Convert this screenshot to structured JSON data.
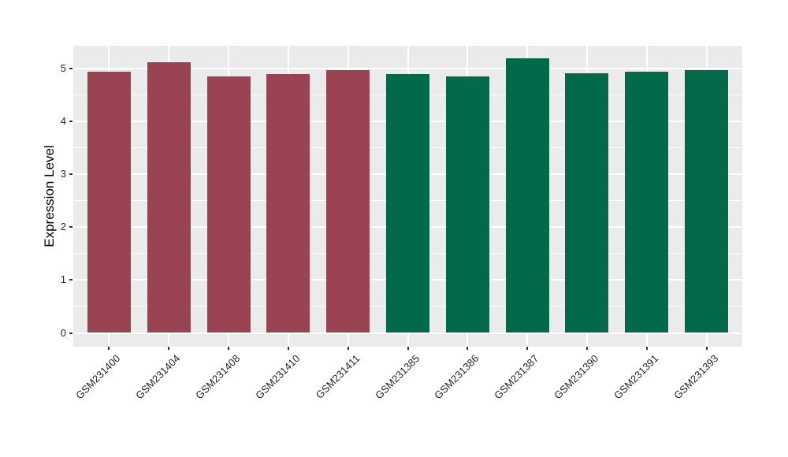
{
  "chart_data": {
    "type": "bar",
    "title": "",
    "xlabel": "",
    "ylabel": "Expression Level",
    "categories": [
      "GSM231400",
      "GSM231404",
      "GSM231408",
      "GSM231410",
      "GSM231411",
      "GSM231385",
      "GSM231386",
      "GSM231387",
      "GSM231390",
      "GSM231391",
      "GSM231393"
    ],
    "values": [
      4.93,
      5.11,
      4.85,
      4.89,
      4.97,
      4.89,
      4.85,
      5.18,
      4.9,
      4.93,
      4.96
    ],
    "bar_colors": [
      "#9A4352",
      "#9A4352",
      "#9A4352",
      "#9A4352",
      "#9A4352",
      "#02694A",
      "#02694A",
      "#02694A",
      "#02694A",
      "#02694A",
      "#02694A"
    ],
    "yticks": [
      0,
      1,
      2,
      3,
      4,
      5
    ],
    "ylim": [
      -0.26,
      5.45
    ],
    "x_tick_rotation_deg": 45,
    "legend": "none",
    "grid": {
      "major": true,
      "minor": true
    },
    "style": {
      "panel_bg": "#EBEBEB",
      "grid_major_color": "#FFFFFF",
      "grid_minor_color": "#FFFFFF",
      "outer_bg": "#FFFFFF",
      "tick_text_color": "#262626",
      "axis_title_color": "#000000",
      "tick_mark_color": "#333333"
    }
  }
}
